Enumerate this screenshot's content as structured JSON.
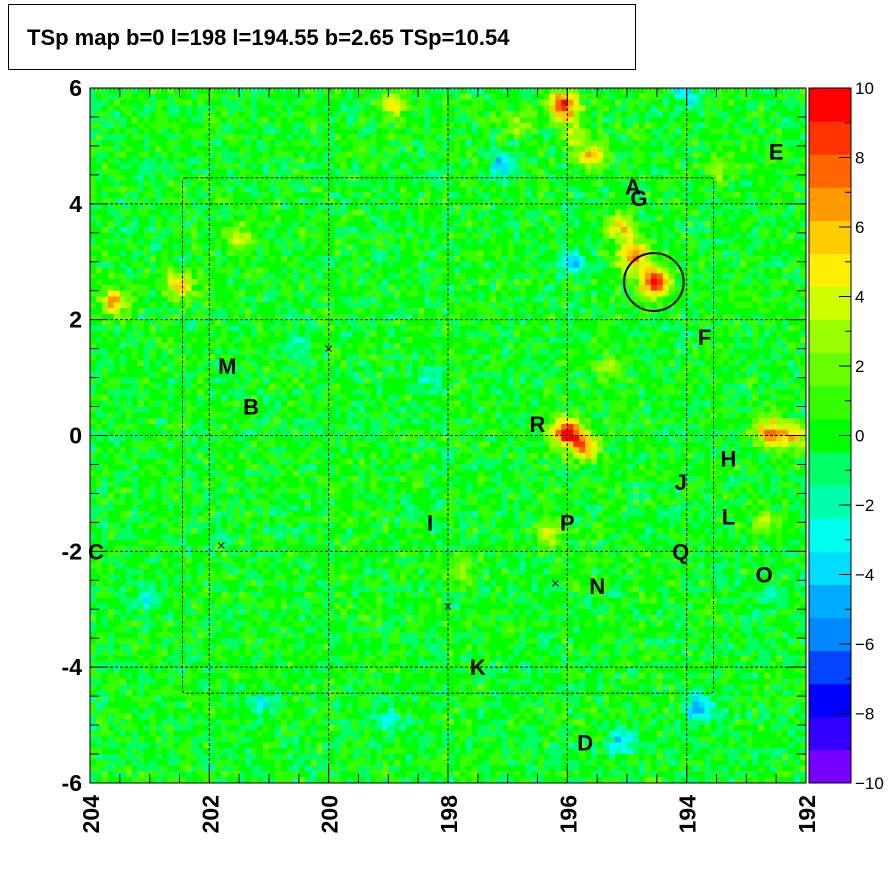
{
  "chart_data": {
    "type": "heatmap",
    "title": "TSp map b=0 l=198 l=194.55 b=2.65 TSp=10.54",
    "xlabel": "",
    "ylabel": "",
    "xlim": [
      204,
      192
    ],
    "ylim": [
      -6,
      6
    ],
    "x_ticks": [
      204,
      202,
      200,
      198,
      196,
      194,
      192
    ],
    "y_ticks": [
      6,
      4,
      2,
      0,
      -2,
      -4,
      -6
    ],
    "grid": true,
    "colorbar": {
      "range": [
        -10,
        10
      ],
      "ticks": [
        10,
        8,
        6,
        4,
        2,
        0,
        -2,
        -4,
        -6,
        -8,
        -10
      ],
      "colors": [
        "#7700ff",
        "#3300ff",
        "#0000ff",
        "#0044ff",
        "#0088ff",
        "#00aaff",
        "#00ddff",
        "#00ffee",
        "#00ffaa",
        "#00ff66",
        "#00ff00",
        "#33ff00",
        "#66ff00",
        "#99ff00",
        "#ccff00",
        "#ffee00",
        "#ffcc00",
        "#ff9900",
        "#ff6600",
        "#ff3300",
        "#ff0000"
      ]
    },
    "hotspots": [
      {
        "l": 194.55,
        "b": 2.65,
        "ts": 10
      },
      {
        "l": 194.9,
        "b": 3.1,
        "ts": 7
      },
      {
        "l": 195.1,
        "b": 3.6,
        "ts": 6
      },
      {
        "l": 196.05,
        "b": 5.7,
        "ts": 9
      },
      {
        "l": 195.6,
        "b": 4.8,
        "ts": 6
      },
      {
        "l": 195.9,
        "b": 5.2,
        "ts": 4
      },
      {
        "l": 196.0,
        "b": 0.05,
        "ts": 10
      },
      {
        "l": 195.7,
        "b": -0.2,
        "ts": 6
      },
      {
        "l": 192.6,
        "b": 0.05,
        "ts": 7
      },
      {
        "l": 192.2,
        "b": 0.0,
        "ts": 5
      },
      {
        "l": 203.6,
        "b": 2.3,
        "ts": 6
      },
      {
        "l": 202.5,
        "b": 2.6,
        "ts": 6
      },
      {
        "l": 198.9,
        "b": 5.7,
        "ts": 5
      },
      {
        "l": 201.5,
        "b": 3.4,
        "ts": 4
      },
      {
        "l": 196.3,
        "b": -1.7,
        "ts": 4
      },
      {
        "l": 192.7,
        "b": -1.5,
        "ts": 3
      },
      {
        "l": 195.3,
        "b": 1.2,
        "ts": 3
      },
      {
        "l": 197.8,
        "b": -2.3,
        "ts": 3
      },
      {
        "l": 196.8,
        "b": 5.4,
        "ts": 3
      },
      {
        "l": 193.5,
        "b": 4.6,
        "ts": 3
      },
      {
        "l": 197.1,
        "b": 4.7,
        "ts": -4
      },
      {
        "l": 195.9,
        "b": 3.0,
        "ts": -4
      },
      {
        "l": 193.8,
        "b": -4.7,
        "ts": -5
      },
      {
        "l": 203.0,
        "b": -2.8,
        "ts": -3
      },
      {
        "l": 194.0,
        "b": 5.9,
        "ts": -3
      },
      {
        "l": 201.1,
        "b": -4.6,
        "ts": -3
      },
      {
        "l": 199.0,
        "b": -4.9,
        "ts": -3
      },
      {
        "l": 195.1,
        "b": -5.3,
        "ts": -4
      },
      {
        "l": 198.3,
        "b": 1.0,
        "ts": -2
      },
      {
        "l": 200.5,
        "b": 1.6,
        "ts": -2
      },
      {
        "l": 192.6,
        "b": -2.8,
        "ts": -2
      }
    ],
    "sources": [
      {
        "label": "A",
        "l": 194.9,
        "b": 4.3
      },
      {
        "label": "G",
        "l": 194.8,
        "b": 4.1
      },
      {
        "label": "E",
        "l": 192.5,
        "b": 4.9
      },
      {
        "label": "F",
        "l": 193.7,
        "b": 1.7
      },
      {
        "label": "M",
        "l": 201.7,
        "b": 1.2
      },
      {
        "label": "B",
        "l": 201.3,
        "b": 0.5
      },
      {
        "label": "R",
        "l": 196.5,
        "b": 0.2
      },
      {
        "label": "H",
        "l": 193.3,
        "b": -0.4
      },
      {
        "label": "J",
        "l": 194.1,
        "b": -0.8
      },
      {
        "label": "L",
        "l": 193.3,
        "b": -1.4
      },
      {
        "label": "C",
        "l": 203.9,
        "b": -2.0
      },
      {
        "label": "I",
        "l": 198.3,
        "b": -1.5
      },
      {
        "label": "P",
        "l": 196.0,
        "b": -1.5
      },
      {
        "label": "Q",
        "l": 194.1,
        "b": -2.0
      },
      {
        "label": "O",
        "l": 192.7,
        "b": -2.4
      },
      {
        "label": "N",
        "l": 195.5,
        "b": -2.6
      },
      {
        "label": "K",
        "l": 197.5,
        "b": -4.0
      },
      {
        "label": "D",
        "l": 195.7,
        "b": -5.3
      }
    ],
    "crosses": [
      {
        "l": 200.0,
        "b": 1.5
      },
      {
        "l": 201.8,
        "b": -1.9
      },
      {
        "l": 196.2,
        "b": -2.55
      },
      {
        "l": 198.0,
        "b": -2.95
      }
    ],
    "circle": {
      "l": 194.55,
      "b": 2.65,
      "r_deg": 0.5
    },
    "roi_box": {
      "l_min": 193.55,
      "l_max": 202.45,
      "b_min": -4.45,
      "b_max": 4.45
    }
  }
}
